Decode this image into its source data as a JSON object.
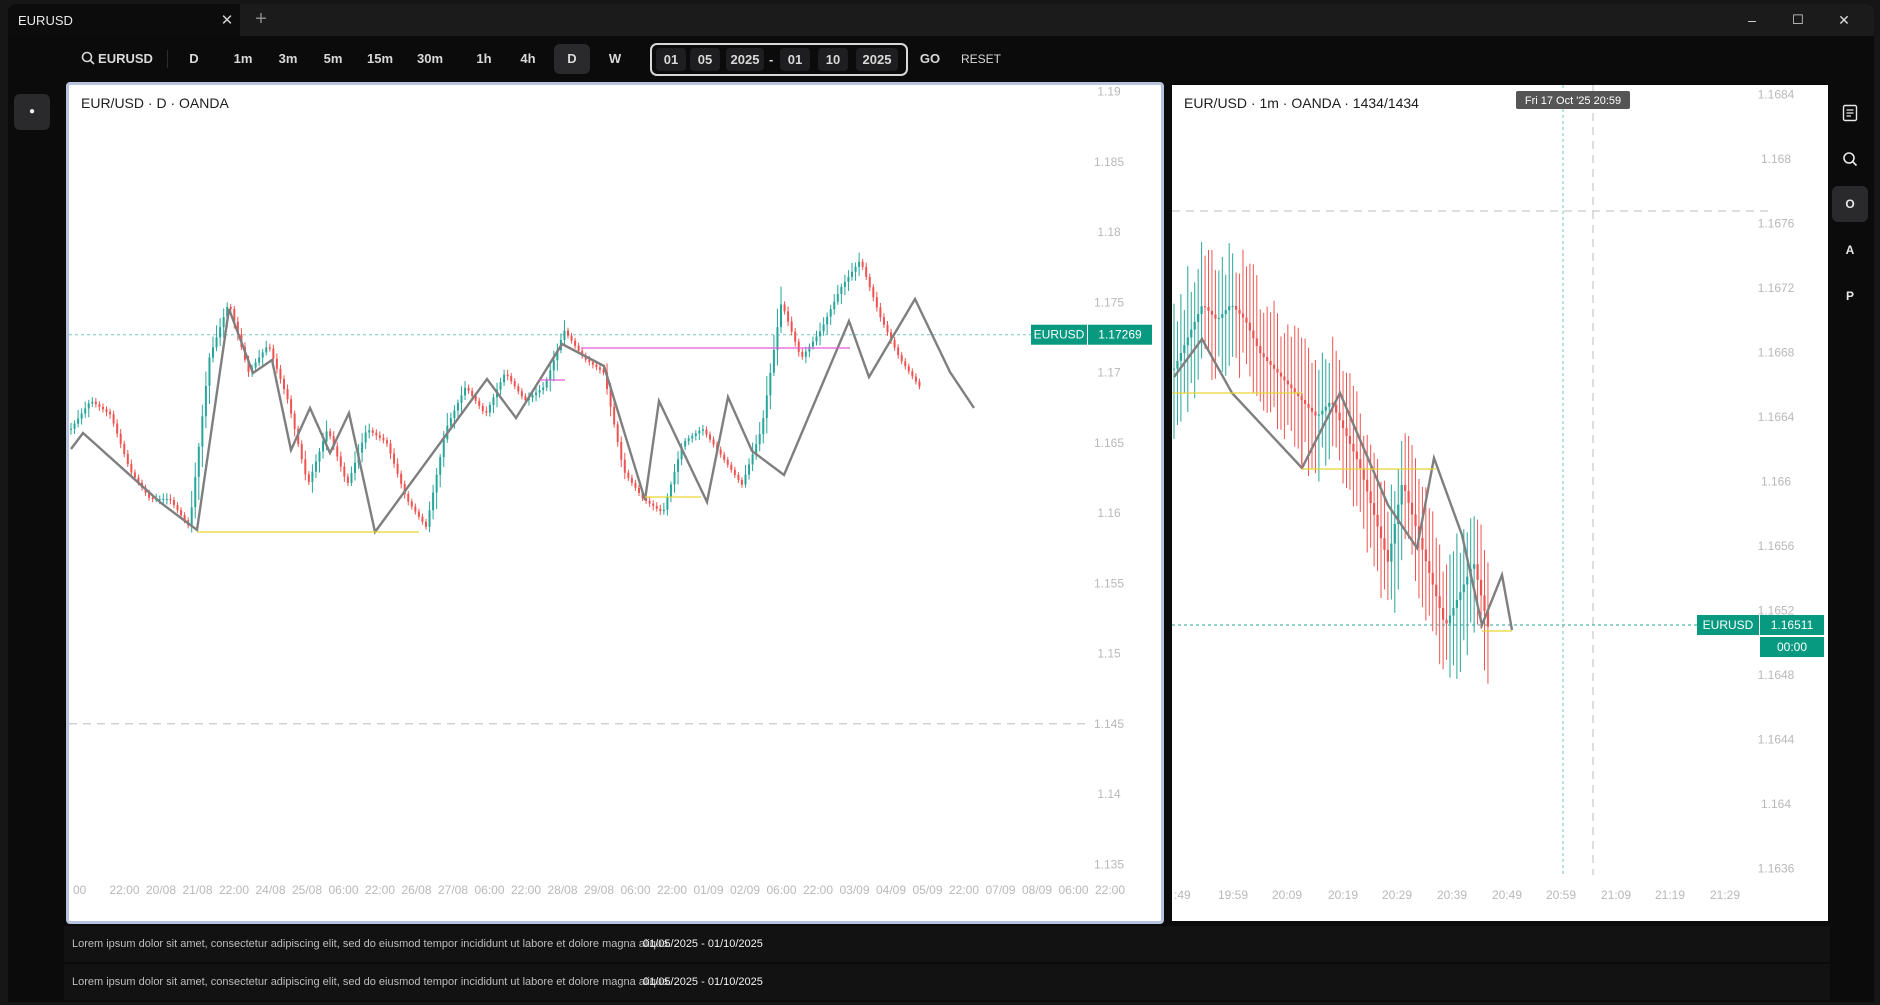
{
  "app": {
    "tab_title": "EURUSD",
    "close_glyph": "✕",
    "add_glyph": "+"
  },
  "window_controls": {
    "minimize": "–",
    "maximize": "☐",
    "close": "✕"
  },
  "toolbar": {
    "symbol": "EURUSD",
    "search_icon": "search-icon",
    "timeframes": [
      "D",
      "1m",
      "3m",
      "5m",
      "15m",
      "30m",
      "1h",
      "4h",
      "D",
      "W"
    ],
    "active_timeframe_index": 8,
    "date_range": {
      "start_day": "01",
      "start_month": "05",
      "start_year": "2025",
      "separator": "-",
      "end_day": "01",
      "end_month": "10",
      "end_year": "2025"
    },
    "go_label": "GO",
    "reset_label": "RESET"
  },
  "left_toolbar": {
    "dot_glyph": "●"
  },
  "right_toolbar": {
    "buttons": [
      {
        "icon": "notes-icon",
        "label": ""
      },
      {
        "icon": "search-icon",
        "label": ""
      },
      {
        "icon": "",
        "label": "O"
      },
      {
        "icon": "",
        "label": "A"
      },
      {
        "icon": "",
        "label": "P"
      }
    ],
    "active_index": 2
  },
  "colors": {
    "up": "#26a69a",
    "down": "#ef5350",
    "zigzag": "#7f7f7f",
    "level": "#e6d533",
    "magenta": "#e85bdb",
    "price_tag": "#089981"
  },
  "chart_left": {
    "title": "EUR/USD · D · OANDA",
    "y_ticks": [
      "1.19",
      "1.185",
      "1.18",
      "1.175",
      "1.17",
      "1.165",
      "1.16",
      "1.155",
      "1.15",
      "1.145",
      "1.14",
      "1.135"
    ],
    "x_ticks": [
      "00",
      "22:00",
      "20/08",
      "21/08",
      "22:00",
      "24/08",
      "25/08",
      "06:00",
      "22:00",
      "26/08",
      "27/08",
      "06:00",
      "22:00",
      "28/08",
      "29/08",
      "06:00",
      "22:00",
      "01/09",
      "02/09",
      "06:00",
      "22:00",
      "03/09",
      "04/09",
      "05/09",
      "22:00",
      "07/09",
      "08/09",
      "06:00",
      "22:00"
    ],
    "price_tag_symbol": "EURUSD",
    "price_tag_value": "1.17269"
  },
  "chart_right": {
    "title": "EUR/USD · 1m · OANDA · 1434/1434",
    "crosshair_time": "Fri 17 Oct '25 20:59",
    "y_ticks": [
      "1.1684",
      "1.168",
      "1.1676",
      "1.1672",
      "1.1668",
      "1.1664",
      "1.166",
      "1.1656",
      "1.1652",
      "1.1648",
      "1.1644",
      "1.164",
      "1.1636"
    ],
    "x_ticks": [
      ":49",
      "19:59",
      "20:09",
      "20:19",
      "20:29",
      "20:39",
      "20:49",
      "20:59",
      "21:09",
      "21:19",
      "21:29"
    ],
    "price_tag_symbol": "EURUSD",
    "price_tag_value": "1.16511",
    "countdown": "00:00"
  },
  "footers": [
    {
      "description": "Lorem ipsum dolor sit amet, consectetur adipiscing elit, sed do eiusmod tempor incididunt ut labore et dolore magna aliqua.",
      "range": "01/05/2025 - 01/10/2025"
    },
    {
      "description": "Lorem ipsum dolor sit amet, consectetur adipiscing elit, sed do eiusmod tempor incididunt ut labore et dolore magna aliqua.",
      "range": "01/05/2025 - 01/10/2025"
    }
  ]
}
